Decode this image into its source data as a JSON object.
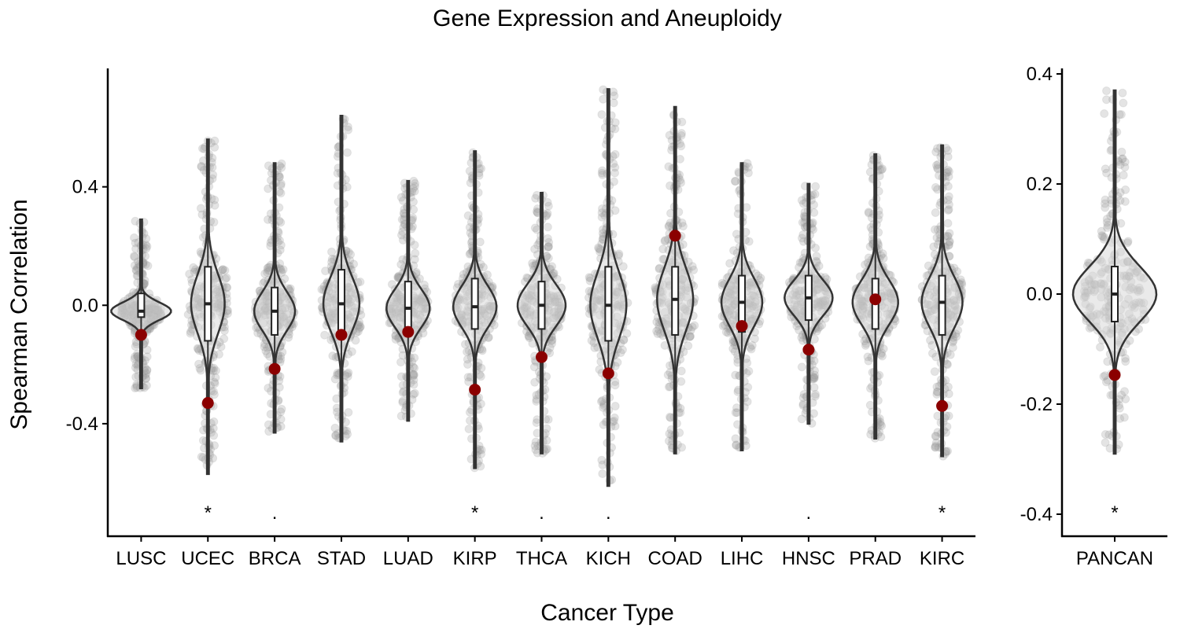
{
  "title": "Gene Expression and Aneuploidy",
  "chart_data": [
    {
      "type": "violin",
      "title": "Gene Expression and Aneuploidy",
      "xlabel": "Cancer Type",
      "ylabel": "Spearman Correlation",
      "ylim": [
        -0.78,
        0.8
      ],
      "yticks": [
        -0.4,
        0.0,
        0.4
      ],
      "ytick_labels": [
        "-0.4",
        "0.0",
        "0.4"
      ],
      "grid": false,
      "colors": {
        "violin_fill": "#d9d9d9",
        "violin_line": "#333333",
        "points": "#9e9e9e",
        "highlight": "#8b0000"
      },
      "categories": [
        "LUSC",
        "UCEC",
        "BRCA",
        "STAD",
        "LUAD",
        "KIRP",
        "THCA",
        "KICH",
        "COAD",
        "LIHC",
        "HNSC",
        "PRAD",
        "KIRC"
      ],
      "groups": [
        {
          "name": "LUSC",
          "min": -0.28,
          "max": 0.29,
          "q1": -0.04,
          "median": -0.02,
          "q3": 0.04,
          "highlight": -0.1,
          "significance": "",
          "halfwidth": 0.03,
          "width_scale": 1.25
        },
        {
          "name": "UCEC",
          "min": -0.57,
          "max": 0.56,
          "q1": -0.12,
          "median": 0.005,
          "q3": 0.13,
          "highlight": -0.33,
          "significance": "*",
          "halfwidth": 0.1,
          "width_scale": 0.7
        },
        {
          "name": "BRCA",
          "min": -0.43,
          "max": 0.48,
          "q1": -0.1,
          "median": -0.02,
          "q3": 0.06,
          "highlight": -0.215,
          "significance": ".",
          "halfwidth": 0.065,
          "width_scale": 0.85
        },
        {
          "name": "STAD",
          "min": -0.46,
          "max": 0.64,
          "q1": -0.09,
          "median": 0.005,
          "q3": 0.12,
          "highlight": -0.1,
          "significance": "",
          "halfwidth": 0.09,
          "width_scale": 0.75
        },
        {
          "name": "LUAD",
          "min": -0.39,
          "max": 0.42,
          "q1": -0.08,
          "median": -0.01,
          "q3": 0.08,
          "highlight": -0.09,
          "significance": "",
          "halfwidth": 0.065,
          "width_scale": 0.9
        },
        {
          "name": "KIRP",
          "min": -0.55,
          "max": 0.52,
          "q1": -0.08,
          "median": -0.005,
          "q3": 0.09,
          "highlight": -0.285,
          "significance": "*",
          "halfwidth": 0.07,
          "width_scale": 0.9
        },
        {
          "name": "THCA",
          "min": -0.5,
          "max": 0.38,
          "q1": -0.08,
          "median": 0.0,
          "q3": 0.08,
          "highlight": -0.175,
          "significance": ".",
          "halfwidth": 0.07,
          "width_scale": 1.0
        },
        {
          "name": "KICH",
          "min": -0.61,
          "max": 0.73,
          "q1": -0.12,
          "median": 0.0,
          "q3": 0.13,
          "highlight": -0.23,
          "significance": ".",
          "halfwidth": 0.11,
          "width_scale": 0.75
        },
        {
          "name": "COAD",
          "min": -0.5,
          "max": 0.67,
          "q1": -0.1,
          "median": 0.02,
          "q3": 0.13,
          "highlight": 0.235,
          "significance": "",
          "halfwidth": 0.105,
          "width_scale": 0.75
        },
        {
          "name": "LIHC",
          "min": -0.49,
          "max": 0.48,
          "q1": -0.09,
          "median": 0.01,
          "q3": 0.1,
          "highlight": -0.07,
          "significance": "",
          "halfwidth": 0.08,
          "width_scale": 0.85
        },
        {
          "name": "HNSC",
          "min": -0.4,
          "max": 0.41,
          "q1": -0.05,
          "median": 0.025,
          "q3": 0.1,
          "highlight": -0.15,
          "significance": ".",
          "halfwidth": 0.06,
          "width_scale": 1.0
        },
        {
          "name": "PRAD",
          "min": -0.45,
          "max": 0.51,
          "q1": -0.08,
          "median": 0.01,
          "q3": 0.09,
          "highlight": 0.02,
          "significance": "",
          "halfwidth": 0.075,
          "width_scale": 0.95
        },
        {
          "name": "KIRC",
          "min": -0.51,
          "max": 0.54,
          "q1": -0.1,
          "median": 0.01,
          "q3": 0.1,
          "highlight": -0.34,
          "significance": "*",
          "halfwidth": 0.085,
          "width_scale": 0.85
        }
      ]
    },
    {
      "type": "violin",
      "ylim": [
        -0.44,
        0.41
      ],
      "yticks": [
        -0.4,
        -0.2,
        0.0,
        0.2,
        0.4
      ],
      "ytick_labels": [
        "-0.4",
        "-0.2",
        "0.0",
        "0.2",
        "0.4"
      ],
      "categories": [
        "PANCAN"
      ],
      "groups": [
        {
          "name": "PANCAN",
          "min": -0.29,
          "max": 0.37,
          "q1": -0.05,
          "median": 0.0,
          "q3": 0.05,
          "highlight": -0.147,
          "significance": "*",
          "halfwidth": 0.05,
          "width_scale": 1.1
        }
      ]
    }
  ]
}
